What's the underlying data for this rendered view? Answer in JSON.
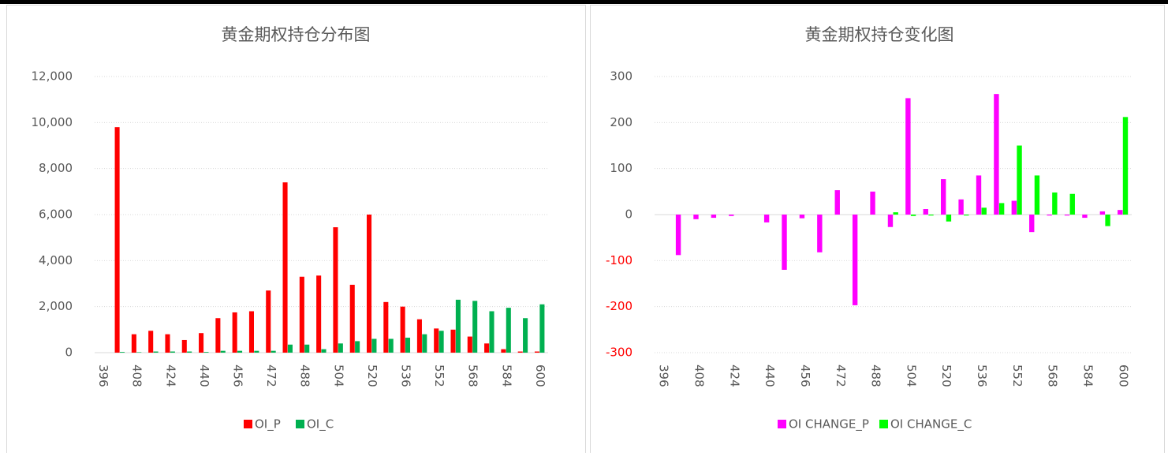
{
  "chart_data": [
    {
      "type": "bar",
      "title": "黄金期权持仓分布图",
      "categories": [
        "396",
        null,
        "408",
        null,
        "424",
        null,
        "440",
        null,
        "456",
        null,
        "472",
        null,
        "488",
        null,
        "504",
        null,
        "520",
        null,
        "536",
        null,
        "552",
        null,
        "568",
        null,
        "584",
        null,
        "600"
      ],
      "series": [
        {
          "name": "OI_P",
          "color": "#ff0000",
          "values": [
            null,
            9800,
            800,
            950,
            800,
            550,
            850,
            1500,
            1750,
            1800,
            2700,
            7400,
            3300,
            3350,
            5450,
            2950,
            6000,
            2200,
            2000,
            1450,
            1050,
            1000,
            700,
            400,
            150,
            50,
            50
          ]
        },
        {
          "name": "OI_C",
          "color": "#00b050",
          "values": [
            null,
            30,
            20,
            50,
            50,
            50,
            30,
            80,
            80,
            80,
            80,
            350,
            350,
            150,
            400,
            500,
            600,
            600,
            650,
            800,
            950,
            2300,
            2250,
            1800,
            1950,
            1500,
            2100
          ]
        }
      ],
      "ylim": [
        0,
        12000
      ],
      "yticks": [
        0,
        {
          "value": 2000,
          "label": "2,000"
        },
        {
          "value": 4000,
          "label": "4,000"
        },
        {
          "value": 6000,
          "label": "6,000"
        },
        {
          "value": 8000,
          "label": "8,000"
        },
        {
          "value": 10000,
          "label": "10,000"
        },
        {
          "value": 12000,
          "label": "12,000"
        }
      ],
      "grid": true,
      "legend": "bottom"
    },
    {
      "type": "bar",
      "title": "黄金期权持仓变化图",
      "categories": [
        "396",
        null,
        "408",
        null,
        "424",
        null,
        "440",
        null,
        "456",
        null,
        "472",
        null,
        "488",
        null,
        "504",
        null,
        "520",
        null,
        "536",
        null,
        "552",
        null,
        "568",
        null,
        "584",
        null,
        "600"
      ],
      "series": [
        {
          "name": "OI CHANGE_P",
          "color": "#ff00ff",
          "values": [
            null,
            -88,
            -10,
            -7,
            -3,
            null,
            -17,
            -120,
            -8,
            -82,
            53,
            -197,
            50,
            -27,
            253,
            12,
            77,
            33,
            85,
            262,
            30,
            -38,
            -2,
            -2,
            -7,
            7,
            10
          ]
        },
        {
          "name": "OI CHANGE_C",
          "color": "#00ff00",
          "values": [
            null,
            null,
            null,
            null,
            null,
            null,
            null,
            null,
            null,
            null,
            null,
            null,
            null,
            5,
            -3,
            -2,
            -15,
            -2,
            15,
            25,
            150,
            85,
            48,
            45,
            null,
            -25,
            212
          ]
        }
      ],
      "ylim": [
        -300,
        300
      ],
      "yticks": [
        -300,
        -200,
        -100,
        0,
        100,
        200,
        300
      ],
      "negative_tick_color": "#ff0000",
      "grid": true,
      "legend": "bottom"
    }
  ]
}
